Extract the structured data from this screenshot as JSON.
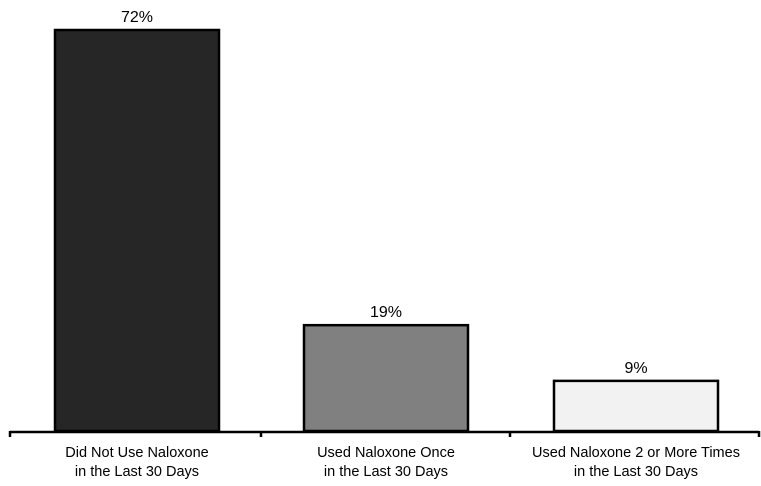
{
  "chart_data": {
    "type": "bar",
    "categories": [
      [
        "Did Not Use Naloxone",
        "in the Last 30 Days"
      ],
      [
        "Used Naloxone Once",
        "in the Last 30 Days"
      ],
      [
        "Used Naloxone 2 or More Times",
        "in the Last 30 Days"
      ]
    ],
    "values": [
      72,
      19,
      9
    ],
    "data_labels": [
      "72%",
      "19%",
      "9%"
    ],
    "title": "",
    "xlabel": "",
    "ylabel": "",
    "ylim": [
      0,
      72
    ],
    "grid": false,
    "legend": "none",
    "bar_colors": [
      "#262626",
      "#808080",
      "#f2f2f2"
    ],
    "bar_edge_color": "#000000"
  }
}
